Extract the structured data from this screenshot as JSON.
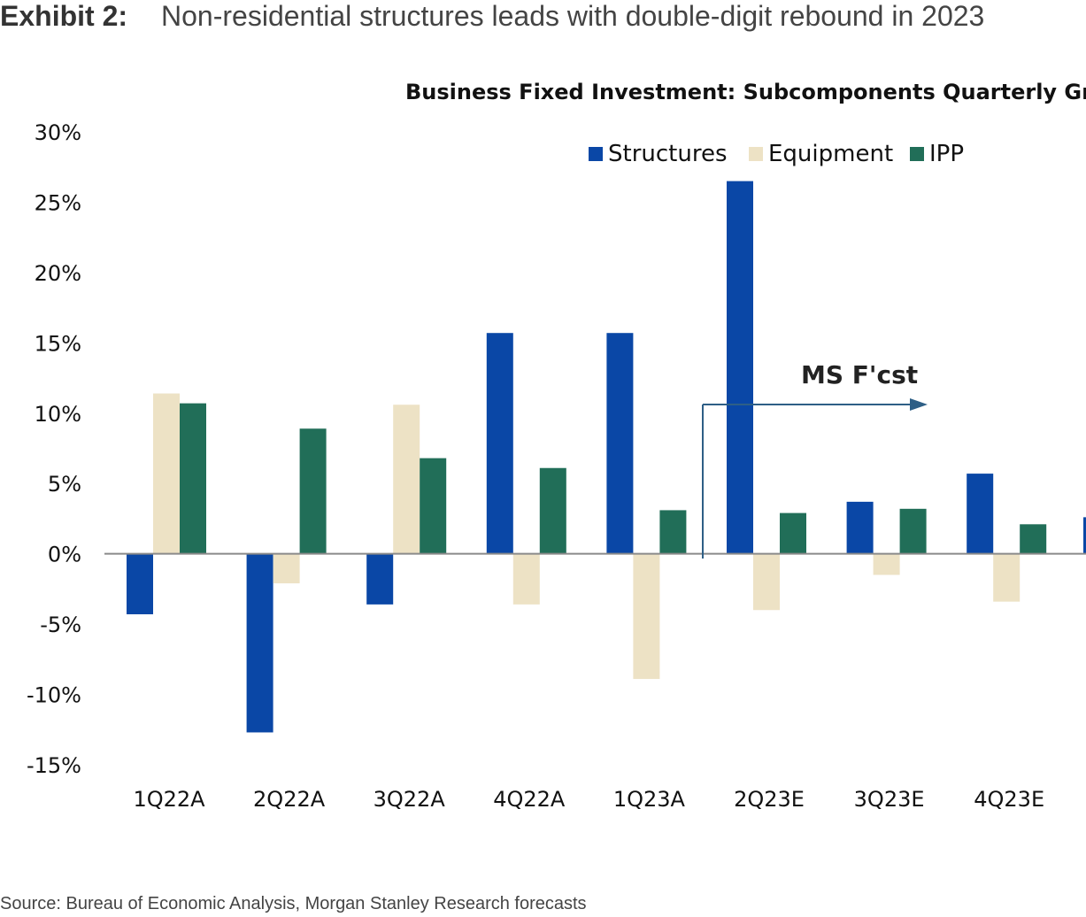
{
  "exhibit": {
    "label": "Exhibit 2:",
    "title": "Non-residential structures leads with double-digit rebound in 2023"
  },
  "source": "Source: Bureau of Economic Analysis, Morgan Stanley Research forecasts",
  "chart_data": {
    "type": "bar",
    "title": "Business Fixed Investment: Subcomponents Quarterly Growth",
    "categories": [
      "1Q22A",
      "2Q22A",
      "3Q22A",
      "4Q22A",
      "1Q23A",
      "2Q23E",
      "3Q23E",
      "4Q23E"
    ],
    "series": [
      {
        "name": "Structures",
        "color": "#0a47a6",
        "values": [
          -4.3,
          -12.7,
          -3.6,
          15.7,
          15.7,
          26.5,
          3.7,
          5.7
        ]
      },
      {
        "name": "Equipment",
        "color": "#ede2c5",
        "values": [
          11.4,
          -2.1,
          10.6,
          -3.6,
          -8.9,
          -4.0,
          -1.5,
          -3.4
        ]
      },
      {
        "name": "IPP",
        "color": "#216e58",
        "values": [
          10.7,
          8.9,
          6.8,
          6.1,
          3.1,
          2.9,
          3.2,
          2.1
        ]
      }
    ],
    "ylim": [
      -15,
      30
    ],
    "yticks": [
      30,
      25,
      20,
      15,
      10,
      5,
      0,
      -5,
      -10,
      -15
    ],
    "ytick_labels": [
      "30%",
      "25%",
      "20%",
      "15%",
      "10%",
      "5%",
      "0%",
      "-5%",
      "-10%",
      "-15%"
    ],
    "xlabel": "",
    "ylabel": "",
    "legend_position": "top-right",
    "annotation": {
      "text": "MS F'cst",
      "starts_at": "2Q23E",
      "direction": "right"
    }
  }
}
